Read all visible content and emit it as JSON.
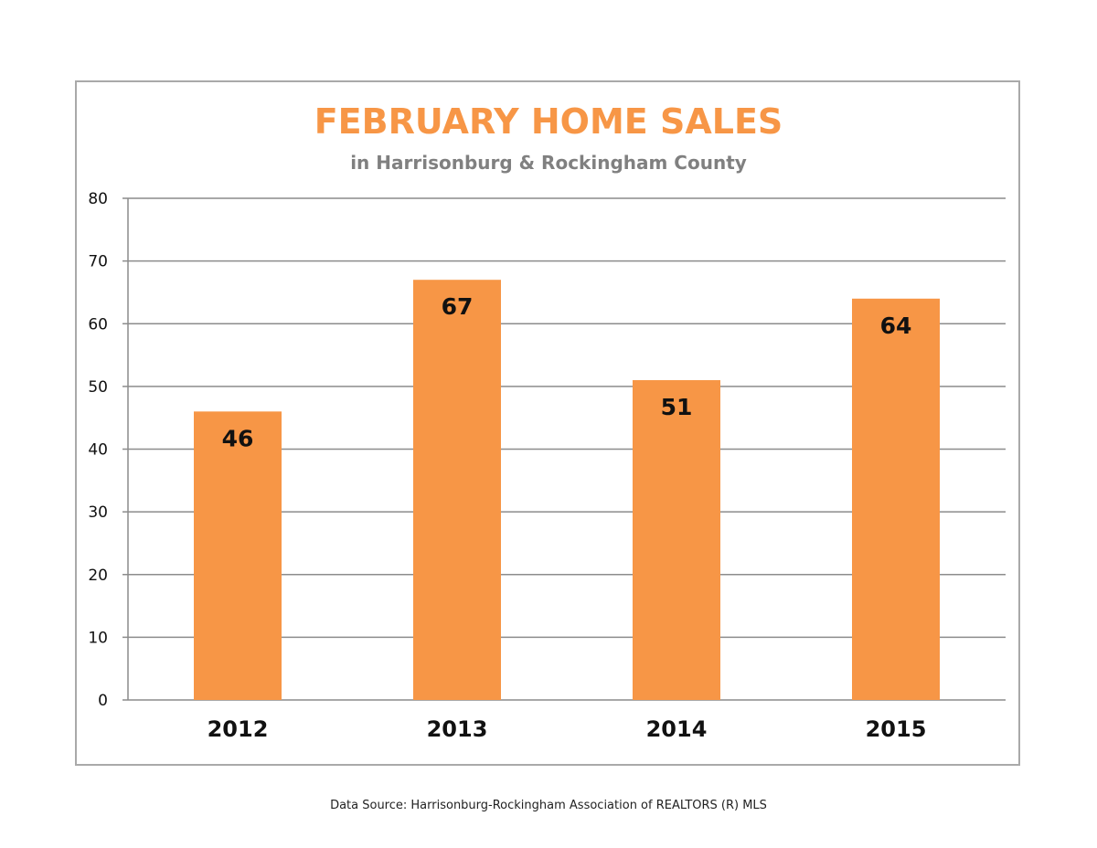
{
  "chart_data": {
    "type": "bar",
    "title": "FEBRUARY HOME SALES",
    "subtitle": "in Harrisonburg & Rockingham County",
    "categories": [
      "2012",
      "2013",
      "2014",
      "2015"
    ],
    "values": [
      46,
      67,
      51,
      64
    ],
    "data_labels": [
      "46",
      "67",
      "51",
      "64"
    ],
    "ylim": [
      0,
      80
    ],
    "yticks": [
      0,
      10,
      20,
      30,
      40,
      50,
      60,
      70,
      80
    ],
    "xlabel": "",
    "ylabel": "",
    "grid": true,
    "legend": "none",
    "colors": {
      "bar": "#f79646",
      "title": "#f79646",
      "subtitle": "#808080",
      "grid": "#8c8c8c"
    }
  },
  "footer": {
    "source": "Data Source: Harrisonburg-Rockingham Association of REALTORS (R) MLS"
  }
}
